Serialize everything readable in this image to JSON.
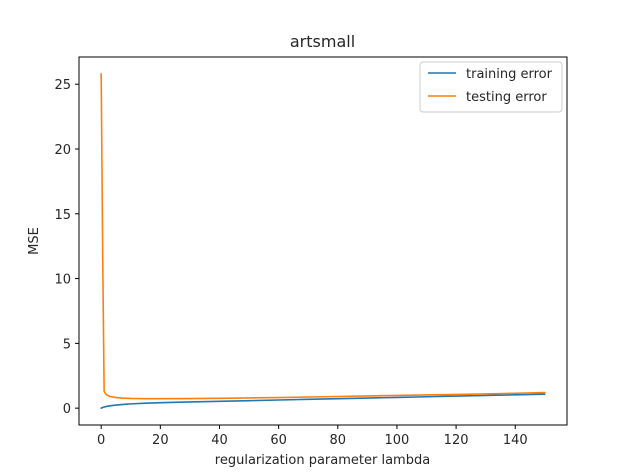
{
  "chart_data": {
    "type": "line",
    "title": "artsmall",
    "xlabel": "regularization parameter lambda",
    "ylabel": "MSE",
    "xlim": [
      -7.5,
      157.5
    ],
    "ylim": [
      -1.3,
      27.1
    ],
    "xticks": [
      0,
      20,
      40,
      60,
      80,
      100,
      120,
      140
    ],
    "yticks": [
      0,
      5,
      10,
      15,
      20,
      25
    ],
    "grid": false,
    "legend_position": "top-right",
    "series": [
      {
        "name": "training error",
        "color": "#1f77b4",
        "x": [
          0,
          0.5,
          1,
          2,
          3,
          5,
          7,
          10,
          15,
          20,
          30,
          40,
          50,
          60,
          70,
          80,
          90,
          100,
          110,
          120,
          130,
          140,
          150
        ],
        "y": [
          0.0,
          0.05,
          0.09,
          0.14,
          0.18,
          0.24,
          0.28,
          0.33,
          0.38,
          0.42,
          0.48,
          0.53,
          0.58,
          0.63,
          0.68,
          0.73,
          0.78,
          0.83,
          0.88,
          0.93,
          0.98,
          1.03,
          1.08
        ]
      },
      {
        "name": "testing error",
        "color": "#ff7f0e",
        "x": [
          0,
          0.5,
          1,
          1.5,
          2,
          3,
          5,
          7,
          10,
          15,
          20,
          30,
          40,
          50,
          60,
          70,
          80,
          90,
          100,
          110,
          120,
          130,
          140,
          150
        ],
        "y": [
          25.8,
          12.0,
          1.3,
          1.1,
          1.0,
          0.9,
          0.82,
          0.78,
          0.75,
          0.73,
          0.73,
          0.74,
          0.76,
          0.79,
          0.82,
          0.86,
          0.9,
          0.94,
          0.98,
          1.02,
          1.06,
          1.1,
          1.15,
          1.2
        ]
      }
    ]
  }
}
